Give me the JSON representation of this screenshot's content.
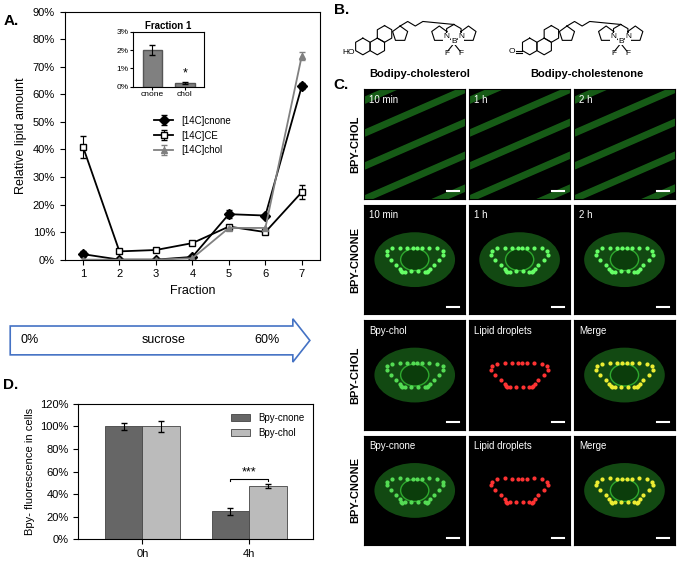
{
  "panel_labels": [
    "A.",
    "B.",
    "C.",
    "D."
  ],
  "chart_data": [
    {
      "type": "line",
      "x_label": "Fraction",
      "y_label": "Relative lipid amount",
      "x": [
        1,
        2,
        3,
        4,
        5,
        6,
        7
      ],
      "xlim": [
        0.5,
        7.5
      ],
      "xticks": [
        1,
        2,
        3,
        4,
        5,
        6,
        7
      ],
      "ylim": [
        0,
        90
      ],
      "yticks": [
        {
          "value": 0,
          "label": "0%"
        },
        {
          "value": 10,
          "label": "10%"
        },
        {
          "value": 20,
          "label": "20%"
        },
        {
          "value": 30,
          "label": "30%"
        },
        {
          "value": 40,
          "label": "40%"
        },
        {
          "value": 50,
          "label": "50%"
        },
        {
          "value": 60,
          "label": "60%"
        },
        {
          "value": 70,
          "label": "70%"
        },
        {
          "value": 80,
          "label": "80%"
        },
        {
          "value": 90,
          "label": "90%"
        }
      ],
      "series": [
        {
          "name": "[14C]cnone",
          "color": "#000000",
          "marker": "diamond",
          "values": [
            2,
            0,
            0,
            1,
            16.5,
            16,
            63
          ],
          "errors": [
            1,
            0,
            0,
            0.5,
            1.5,
            0,
            1
          ]
        },
        {
          "name": "[14C]CE",
          "color": "#000000",
          "marker": "open square",
          "values": [
            41,
            3,
            3.5,
            6,
            12,
            10,
            24.5
          ],
          "errors": [
            4,
            0,
            0,
            0,
            0,
            0,
            2.5
          ]
        },
        {
          "name": "[14C]chol",
          "color": "#808080",
          "marker": "triangle",
          "values": [
            0,
            0,
            0,
            0.5,
            11.5,
            11.5,
            74
          ],
          "errors": [
            0,
            0,
            0,
            0,
            0,
            0,
            1.5
          ]
        }
      ],
      "legend": "center",
      "annotations": [
        "0%",
        "sucrose",
        "60%"
      ]
    },
    {
      "type": "bar",
      "title": "Fraction 1",
      "categories": [
        "cnone",
        "chol"
      ],
      "values": [
        2.0,
        0.2
      ],
      "errors": [
        0.3,
        0.05
      ],
      "color": "#808080",
      "ylim": [
        0,
        3
      ],
      "yticks": [
        {
          "value": 0,
          "label": "0%"
        },
        {
          "value": 1,
          "label": "1%"
        },
        {
          "value": 2,
          "label": "2%"
        },
        {
          "value": 3,
          "label": "3%"
        }
      ],
      "annotations": [
        {
          "text": "*",
          "categories": [
            "chol"
          ]
        }
      ]
    },
    {
      "type": "bar",
      "y_label": "Bpy- fluorescence in cells",
      "categories": [
        "0h",
        "4h"
      ],
      "series": [
        {
          "name": "Bpy-cnone",
          "color": "#666666",
          "values": [
            100,
            25
          ],
          "errors": [
            3,
            3
          ]
        },
        {
          "name": "Bpy-chol",
          "color": "#bbbbbb",
          "values": [
            100,
            47.5
          ],
          "errors": [
            5,
            1.5
          ]
        }
      ],
      "ylim": [
        0,
        120
      ],
      "yticks": [
        {
          "value": 0,
          "label": "0%"
        },
        {
          "value": 20,
          "label": "20%"
        },
        {
          "value": 40,
          "label": "40%"
        },
        {
          "value": 60,
          "label": "60%"
        },
        {
          "value": 80,
          "label": "80%"
        },
        {
          "value": 100,
          "label": "100%"
        },
        {
          "value": 120,
          "label": "120%"
        }
      ],
      "legend": "upper right",
      "annotations": [
        {
          "text": "***",
          "categories": [
            "4h"
          ]
        }
      ]
    }
  ],
  "structures": [
    {
      "caption": "Bodipy-cholesterol",
      "group": "HO"
    },
    {
      "caption": "Bodipy-cholestenone",
      "group": "O"
    }
  ],
  "dye_atoms": {
    "nitrogen": "N",
    "boron": "B",
    "fluorine": "F"
  },
  "micrographs": [
    {
      "label": "BPY-CHOL",
      "panels": [
        "10 min",
        "1 h",
        "2 h"
      ]
    },
    {
      "label": "BPY-CNONE",
      "panels": [
        "10 min",
        "1 h",
        "2 h"
      ]
    },
    {
      "label": "BPY-CHOL",
      "panels": [
        "Bpy-chol",
        "Lipid droplets",
        "Merge"
      ]
    },
    {
      "label": "BPY-CNONE",
      "panels": [
        "Bpy-cnone",
        "Lipid droplets",
        "Merge"
      ]
    }
  ]
}
